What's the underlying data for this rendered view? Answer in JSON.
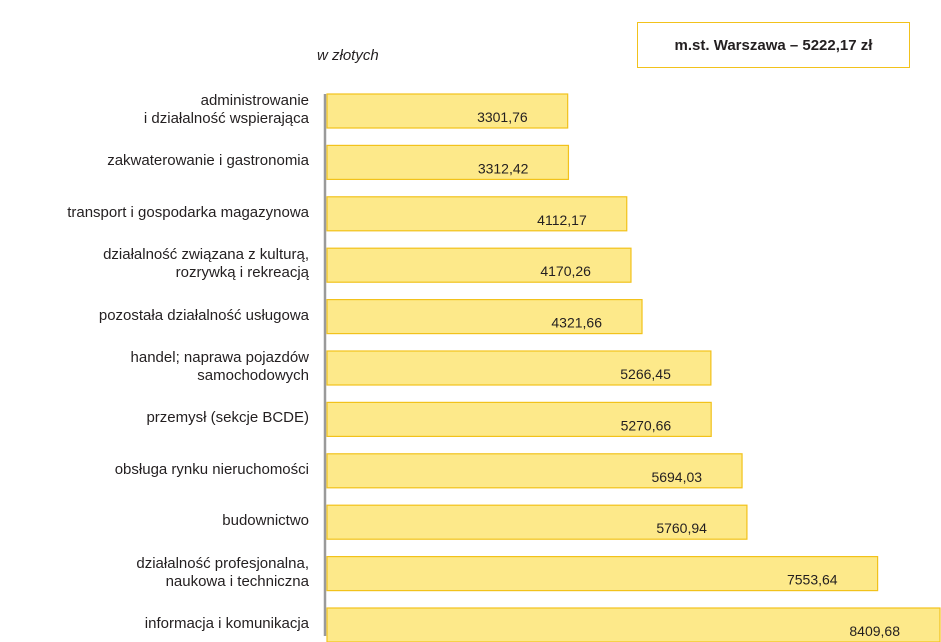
{
  "chart_data": {
    "type": "bar",
    "orientation": "horizontal",
    "subtitle": "w złotych",
    "annotation": "m.st. Warszawa – 5222,17 zł",
    "color": "#fde98a",
    "edge_color": "#f2c21b",
    "categories": [
      "administrowanie\ni działalność wspierająca",
      "zakwaterowanie i gastronomia",
      "transport i gospodarka magazynowa",
      "działalność związana z kulturą,\nrozrywką i rekreacją",
      "pozostała działalność usługowa",
      "handel; naprawa pojazdów\nsamochodowych",
      "przemysł (sekcje BCDE)",
      "obsługa rynku nieruchomości",
      "budownictwo",
      "działalność profesjonalna,\nnaukowa i techniczna",
      "informacja i komunikacja"
    ],
    "values": [
      3301.76,
      3312.42,
      4112.17,
      4170.26,
      4321.66,
      5266.45,
      5270.66,
      5694.03,
      5760.94,
      7553.64,
      8409.68
    ],
    "value_labels": [
      "3301,76",
      "3312,42",
      "4112,17",
      "4170,26",
      "4321,66",
      "5266,45",
      "5270,66",
      "5694,03",
      "5760,94",
      "7553,64",
      "8409,68"
    ]
  }
}
